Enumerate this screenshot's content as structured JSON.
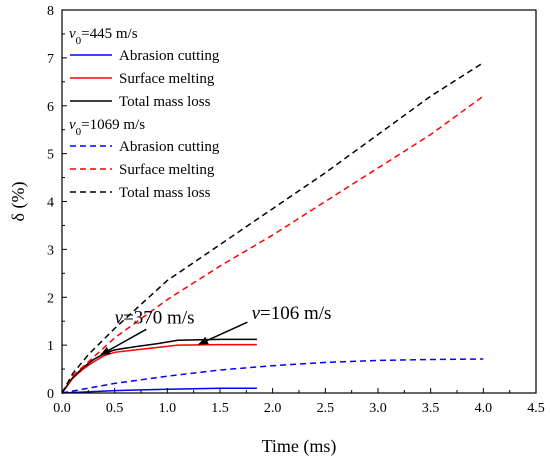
{
  "chart_data": {
    "type": "line",
    "xlabel": "Time (ms)",
    "ylabel": "δ (%)",
    "xlim": [
      0,
      4.5
    ],
    "ylim": [
      0,
      8
    ],
    "xticks": [
      "0.0",
      "0.5",
      "1.0",
      "1.5",
      "2.0",
      "2.5",
      "3.0",
      "3.5",
      "4.0",
      "4.5"
    ],
    "yticks": [
      "0",
      "1",
      "2",
      "3",
      "4",
      "5",
      "6",
      "7",
      "8"
    ],
    "grid": false,
    "legend_position": "top-left",
    "legend_groups": [
      {
        "heading_symbol": "v",
        "heading_subscript": "0",
        "heading_value": "=445 m/s",
        "entries": [
          "Abrasion cutting",
          "Surface melting",
          "Total mass loss"
        ]
      },
      {
        "heading_symbol": "v",
        "heading_subscript": "0",
        "heading_value": "=1069 m/s",
        "entries": [
          "Abrasion cutting",
          "Surface melting",
          "Total mass loss"
        ]
      }
    ],
    "series": [
      {
        "group": 0,
        "entry": 0,
        "color": "#0000ff",
        "dash": "solid",
        "x": [
          0,
          0.5,
          1.0,
          1.5,
          1.85
        ],
        "y": [
          0,
          0.05,
          0.08,
          0.1,
          0.1
        ]
      },
      {
        "group": 0,
        "entry": 1,
        "color": "#ff0000",
        "dash": "solid",
        "x": [
          0,
          0.1,
          0.2,
          0.3,
          0.4,
          0.5,
          0.7,
          0.9,
          1.1,
          1.5,
          1.85
        ],
        "y": [
          0,
          0.3,
          0.5,
          0.65,
          0.78,
          0.85,
          0.9,
          0.95,
          1.0,
          1.01,
          1.01
        ]
      },
      {
        "group": 0,
        "entry": 2,
        "color": "#000000",
        "dash": "solid",
        "x": [
          0,
          0.1,
          0.2,
          0.3,
          0.4,
          0.5,
          0.7,
          0.9,
          1.1,
          1.5,
          1.85
        ],
        "y": [
          0,
          0.32,
          0.53,
          0.7,
          0.82,
          0.9,
          0.97,
          1.03,
          1.1,
          1.12,
          1.12
        ]
      },
      {
        "group": 1,
        "entry": 0,
        "color": "#0000ff",
        "dash": "dashed",
        "x": [
          0,
          0.5,
          1.0,
          1.5,
          2.0,
          2.5,
          3.0,
          3.5,
          4.0
        ],
        "y": [
          0,
          0.2,
          0.35,
          0.48,
          0.57,
          0.64,
          0.68,
          0.7,
          0.71
        ]
      },
      {
        "group": 1,
        "entry": 1,
        "color": "#ff0000",
        "dash": "dashed",
        "x": [
          0,
          0.1,
          0.25,
          0.5,
          1.0,
          1.5,
          2.0,
          2.5,
          3.0,
          3.5,
          4.0
        ],
        "y": [
          0,
          0.35,
          0.65,
          1.15,
          1.95,
          2.65,
          3.3,
          4.0,
          4.7,
          5.4,
          6.2
        ]
      },
      {
        "group": 1,
        "entry": 2,
        "color": "#000000",
        "dash": "dashed",
        "x": [
          0,
          0.1,
          0.25,
          0.5,
          1.0,
          1.5,
          2.0,
          2.5,
          3.0,
          3.5,
          4.0
        ],
        "y": [
          0,
          0.4,
          0.8,
          1.35,
          2.35,
          3.1,
          3.85,
          4.6,
          5.4,
          6.2,
          6.9
        ]
      }
    ],
    "annotations": [
      {
        "symbol": "v",
        "value": "=370 m/s",
        "text_at": [
          0.5,
          1.45
        ],
        "arrow_from": [
          0.8,
          1.33
        ],
        "arrow_to": [
          0.37,
          0.8
        ]
      },
      {
        "symbol": "v",
        "value": "=106 m/s",
        "text_at": [
          1.8,
          1.55
        ],
        "arrow_from": [
          1.76,
          1.48
        ],
        "arrow_to": [
          1.3,
          1.02
        ]
      }
    ]
  }
}
